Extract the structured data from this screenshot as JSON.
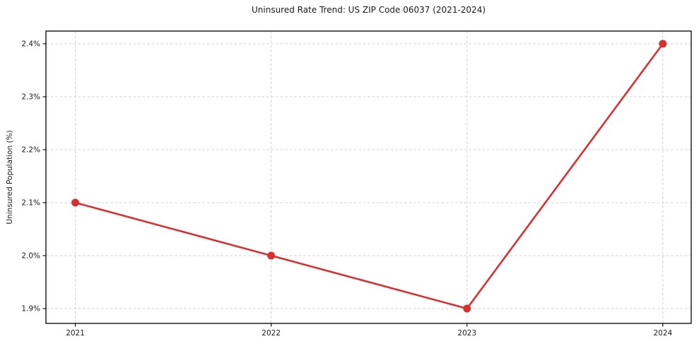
{
  "chart_data": {
    "type": "line",
    "title": "Uninsured Rate Trend: US ZIP Code 06037 (2021-2024)",
    "xlabel": "",
    "ylabel": "Uninsured Population (%)",
    "x": [
      2021,
      2022,
      2023,
      2024
    ],
    "values": [
      2.1,
      2.0,
      1.9,
      2.4
    ],
    "xticks": [
      2021,
      2022,
      2023,
      2024
    ],
    "xtick_labels": [
      "2021",
      "2022",
      "2023",
      "2024"
    ],
    "yticks": [
      1.9,
      2.0,
      2.1,
      2.2,
      2.3,
      2.4
    ],
    "ytick_labels": [
      "1.9%",
      "2.0%",
      "2.1%",
      "2.2%",
      "2.3%",
      "2.4%"
    ],
    "xlim": [
      2020.85,
      2024.145
    ],
    "ylim": [
      1.872,
      2.424
    ],
    "grid": true,
    "grid_style": "dashed",
    "legend": "none",
    "line_color": "#d63031",
    "marker_color": "#d63031",
    "grid_color": "#d4d4d4",
    "axis_color": "#000000",
    "text_color": "#1a1a1a",
    "background_color": "#ffffff"
  }
}
